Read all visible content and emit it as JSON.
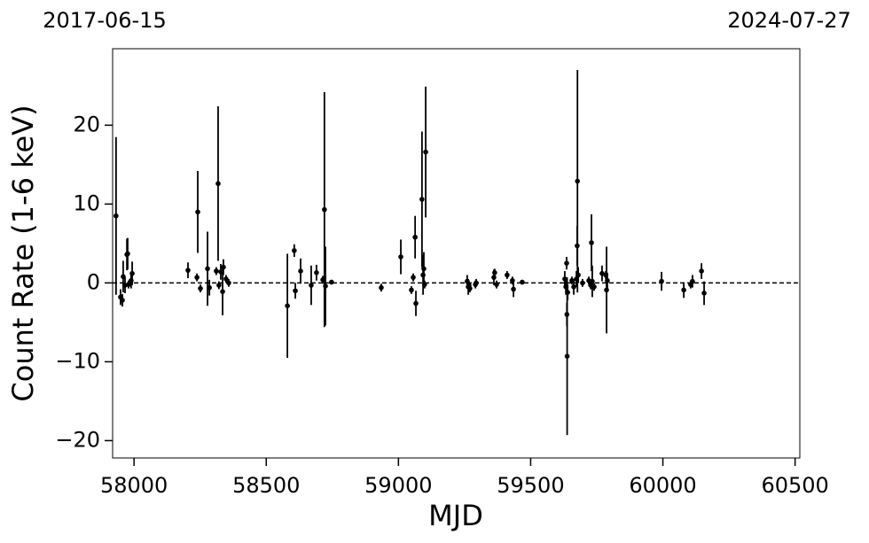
{
  "chart_data": {
    "type": "errorbar",
    "top_left_label": "2017-06-15",
    "top_right_label": "2024-07-27",
    "xlabel": "MJD",
    "ylabel": "Count Rate (1-6 keV)",
    "color": "#000000",
    "reference_line": 0,
    "xlim": [
      57919,
      60518
    ],
    "ylim": [
      -22.2,
      29.7
    ],
    "xticks": [
      58000,
      58500,
      59000,
      59500,
      60000,
      60500
    ],
    "yticks": [
      {
        "value": -20,
        "label": "−20"
      },
      {
        "value": -10,
        "label": "−10"
      },
      0,
      10,
      20
    ],
    "x": [
      57932,
      57949,
      57956,
      57959,
      57966,
      57973,
      57976,
      57979,
      57989,
      57993,
      58204,
      58238,
      58241,
      58251,
      58278,
      58285,
      58311,
      58318,
      58321,
      58328,
      58335,
      58338,
      58348,
      58358,
      58580,
      58606,
      58610,
      58630,
      58670,
      58690,
      58714,
      58720,
      58724,
      58747,
      58935,
      59009,
      59049,
      59056,
      59063,
      59066,
      59089,
      59093,
      59096,
      59099,
      59103,
      59260,
      59264,
      59267,
      59270,
      59291,
      59294,
      59361,
      59364,
      59371,
      59411,
      59431,
      59435,
      59468,
      59629,
      59633,
      59636,
      59637,
      59638,
      59640,
      59656,
      59663,
      59673,
      59676,
      59677,
      59680,
      59696,
      59720,
      59727,
      59730,
      59733,
      59740,
      59770,
      59784,
      59787,
      59790,
      59995,
      60079,
      60105,
      60112,
      60146,
      60156
    ],
    "values": [
      8.5,
      -1.8,
      -2.2,
      0.8,
      -0.3,
      3.6,
      3.7,
      -0.2,
      0.3,
      1.2,
      1.6,
      0.7,
      9.0,
      -0.7,
      1.8,
      -0.6,
      1.5,
      12.6,
      -0.3,
      1.4,
      -1.1,
      2.0,
      0.5,
      0.0,
      -2.9,
      4.1,
      -1.0,
      1.5,
      -0.3,
      1.3,
      0.4,
      9.3,
      -0.4,
      0.1,
      -0.6,
      3.3,
      -0.9,
      0.7,
      5.8,
      -2.6,
      10.6,
      1.0,
      1.8,
      -0.2,
      16.6,
      0.2,
      -0.5,
      -0.3,
      -0.7,
      -0.2,
      0.0,
      0.7,
      1.3,
      -0.2,
      1.0,
      0.3,
      -0.8,
      0.1,
      0.5,
      -0.5,
      2.5,
      -4.0,
      -9.3,
      -1.2,
      0.3,
      -0.5,
      0.5,
      4.7,
      12.9,
      1.0,
      0.0,
      0.3,
      -0.3,
      5.1,
      0.2,
      -0.5,
      1.2,
      1.0,
      -0.9,
      0.3,
      0.2,
      -0.9,
      -0.2,
      0.2,
      1.5,
      -1.3
    ],
    "errors": [
      10,
      1,
      0.8,
      2,
      1,
      2,
      2,
      0.5,
      1,
      1.5,
      1,
      0.5,
      5.2,
      0.5,
      4.7,
      1,
      0.5,
      9.8,
      0.5,
      1,
      3,
      1,
      0.5,
      0.5,
      6.6,
      0.8,
      1,
      1.6,
      2.5,
      1,
      0.5,
      14.9,
      5,
      0.3,
      0.5,
      2.2,
      0.5,
      0.5,
      2.7,
      1.6,
      8.6,
      2.5,
      2.1,
      0.5,
      8.3,
      0.8,
      1,
      0.5,
      0.5,
      0.5,
      0.5,
      1,
      0.5,
      0.5,
      0.5,
      0.5,
      1,
      0.3,
      1,
      1,
      0.8,
      1.5,
      10,
      1,
      0.5,
      1,
      1,
      2.5,
      14.1,
      1,
      0.5,
      0.5,
      0.5,
      3.6,
      2,
      0.5,
      1,
      0.5,
      5.5,
      1,
      1.2,
      1,
      0.5,
      0.8,
      1,
      1.5
    ]
  }
}
